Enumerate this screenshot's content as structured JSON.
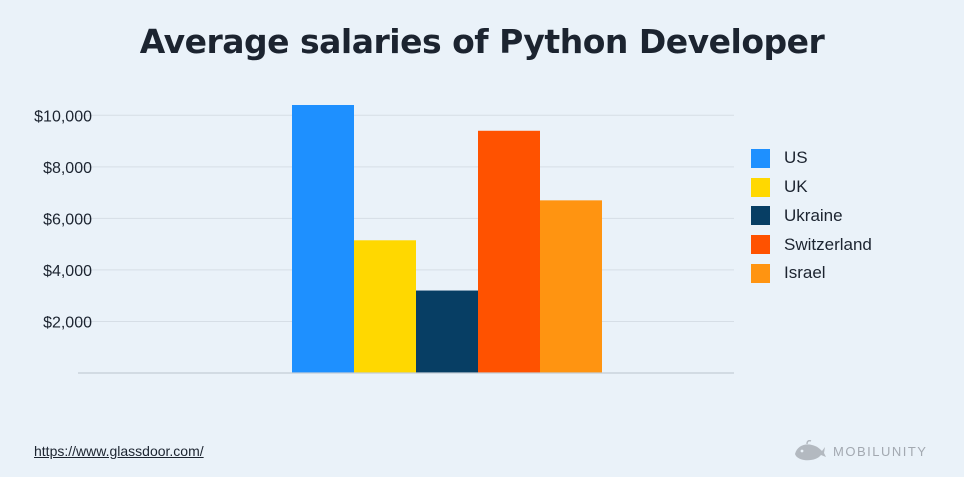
{
  "chart_data": {
    "type": "bar",
    "title": "Average salaries of Python Developer",
    "y_tick_labels": [
      "$10,000",
      "$8,000",
      "$6,000",
      "$4,000",
      "$2,000"
    ],
    "y_ticks": [
      10000,
      8000,
      6000,
      4000,
      2000
    ],
    "ylim": [
      0,
      10400
    ],
    "grid": true,
    "legend_position": "right",
    "series": [
      {
        "name": "US",
        "value": 10400,
        "color": "#1e90ff"
      },
      {
        "name": "UK",
        "value": 5150,
        "color": "#ffd800"
      },
      {
        "name": "Ukraine",
        "value": 3200,
        "color": "#073e64"
      },
      {
        "name": "Switzerland",
        "value": 9400,
        "color": "#ff5200"
      },
      {
        "name": "Israel",
        "value": 6700,
        "color": "#ff9411"
      }
    ]
  },
  "footer": {
    "source": "https://www.glassdoor.com/",
    "brand": "MOBILUNITY"
  }
}
